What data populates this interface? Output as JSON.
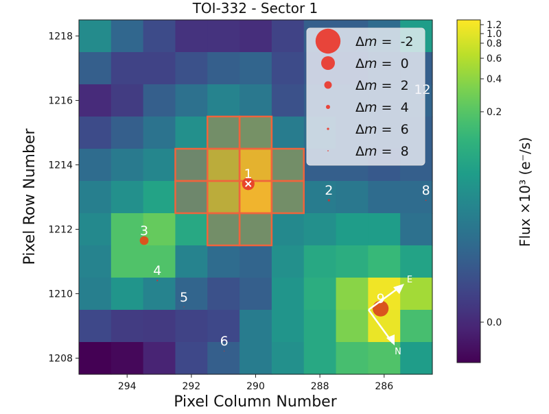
{
  "chart_data": {
    "type": "heatmap",
    "title": "TOI-332 - Sector 1",
    "xlabel": "Pixel Column Number",
    "ylabel": "Pixel Row Number",
    "colorbar_label": "Flux ×10³ (e⁻/s)",
    "colormap": "viridis",
    "x_axis_reversed": true,
    "columns": [
      295,
      294,
      293,
      292,
      291,
      290,
      289,
      288,
      287,
      286,
      285
    ],
    "rows": [
      1218,
      1217,
      1216,
      1215,
      1214,
      1213,
      1212,
      1211,
      1210,
      1209,
      1208
    ],
    "x_ticks": [
      "294",
      "292",
      "290",
      "288",
      "286"
    ],
    "y_ticks": [
      "1208",
      "1210",
      "1212",
      "1214",
      "1216",
      "1218"
    ],
    "colorbar_ticks": [
      "0.0",
      "0.2",
      "0.4",
      "0.6",
      "0.8",
      "1.0",
      "1.2"
    ],
    "flux": [
      [
        0.118,
        0.069,
        0.036,
        0.01,
        0.01,
        0.004,
        0.027,
        0.059,
        0.059,
        0.076,
        0.141
      ],
      [
        0.059,
        0.027,
        0.027,
        0.043,
        0.059,
        0.066,
        0.036,
        0.053,
        0.053,
        0.059,
        0.059
      ],
      [
        0.001,
        0.02,
        0.059,
        0.082,
        0.108,
        0.092,
        0.043,
        0.059,
        0.059,
        0.059,
        0.066
      ],
      [
        0.036,
        0.059,
        0.085,
        0.124,
        0.157,
        0.164,
        0.098,
        0.079,
        0.059,
        0.059,
        0.059
      ],
      [
        0.076,
        0.095,
        0.111,
        0.141,
        0.473,
        0.929,
        0.157,
        0.059,
        0.059,
        0.053,
        0.059
      ],
      [
        0.102,
        0.124,
        0.15,
        0.141,
        0.473,
        1.154,
        0.157,
        0.098,
        0.092,
        0.076,
        0.076
      ],
      [
        0.115,
        0.196,
        0.258,
        0.157,
        0.157,
        0.157,
        0.115,
        0.124,
        0.141,
        0.141,
        0.082
      ],
      [
        0.108,
        0.196,
        0.196,
        0.108,
        0.076,
        0.066,
        0.124,
        0.157,
        0.164,
        0.18,
        0.15
      ],
      [
        0.102,
        0.131,
        0.108,
        0.066,
        0.043,
        0.059,
        0.131,
        0.164,
        0.383,
        1.154,
        0.507
      ],
      [
        0.033,
        0.02,
        0.017,
        0.027,
        0.033,
        0.098,
        0.131,
        0.157,
        0.342,
        1.077,
        0.19
      ],
      [
        -0.038,
        -0.032,
        -0.006,
        0.033,
        0.059,
        0.098,
        0.124,
        0.157,
        0.19,
        0.196,
        0.141
      ]
    ],
    "aperture_pixels": [
      [
        291,
        1215
      ],
      [
        290,
        1215
      ],
      [
        292,
        1214
      ],
      [
        291,
        1214
      ],
      [
        290,
        1214
      ],
      [
        289,
        1214
      ],
      [
        292,
        1213
      ],
      [
        291,
        1213
      ],
      [
        290,
        1213
      ],
      [
        289,
        1213
      ],
      [
        291,
        1212
      ],
      [
        290,
        1212
      ]
    ],
    "aperture_color": "#f0643c",
    "star_color": "#e8443a",
    "stars": [
      {
        "label": "1",
        "x": 290.23,
        "y": 1213.41,
        "dm": 0.3,
        "target": true
      },
      {
        "label": "2",
        "x": 287.72,
        "y": 1212.9,
        "dm": 6
      },
      {
        "label": "3",
        "x": 293.47,
        "y": 1211.65,
        "dm": 1.5
      },
      {
        "label": "4",
        "x": 293.06,
        "y": 1210.41,
        "dm": 7
      },
      {
        "label": "5",
        "x": 292.23,
        "y": 1209.59,
        "dm": 9
      },
      {
        "label": "6",
        "x": 290.98,
        "y": 1208.22,
        "dm": 9
      },
      {
        "label": "8",
        "x": 284.7,
        "y": 1212.9,
        "dm": 8
      },
      {
        "label": "9",
        "x": 286.11,
        "y": 1209.54,
        "dm": -0.5
      },
      {
        "label": "12",
        "x": 284.81,
        "y": 1216.03,
        "dm": 8
      }
    ],
    "legend": {
      "placement": "top-right",
      "prefix": "Δ",
      "symbol": "m",
      "equals": " =  ",
      "values": [
        "-2",
        "0",
        "2",
        "4",
        "6",
        "8"
      ]
    },
    "compass": {
      "east": "E",
      "north": "N"
    }
  }
}
